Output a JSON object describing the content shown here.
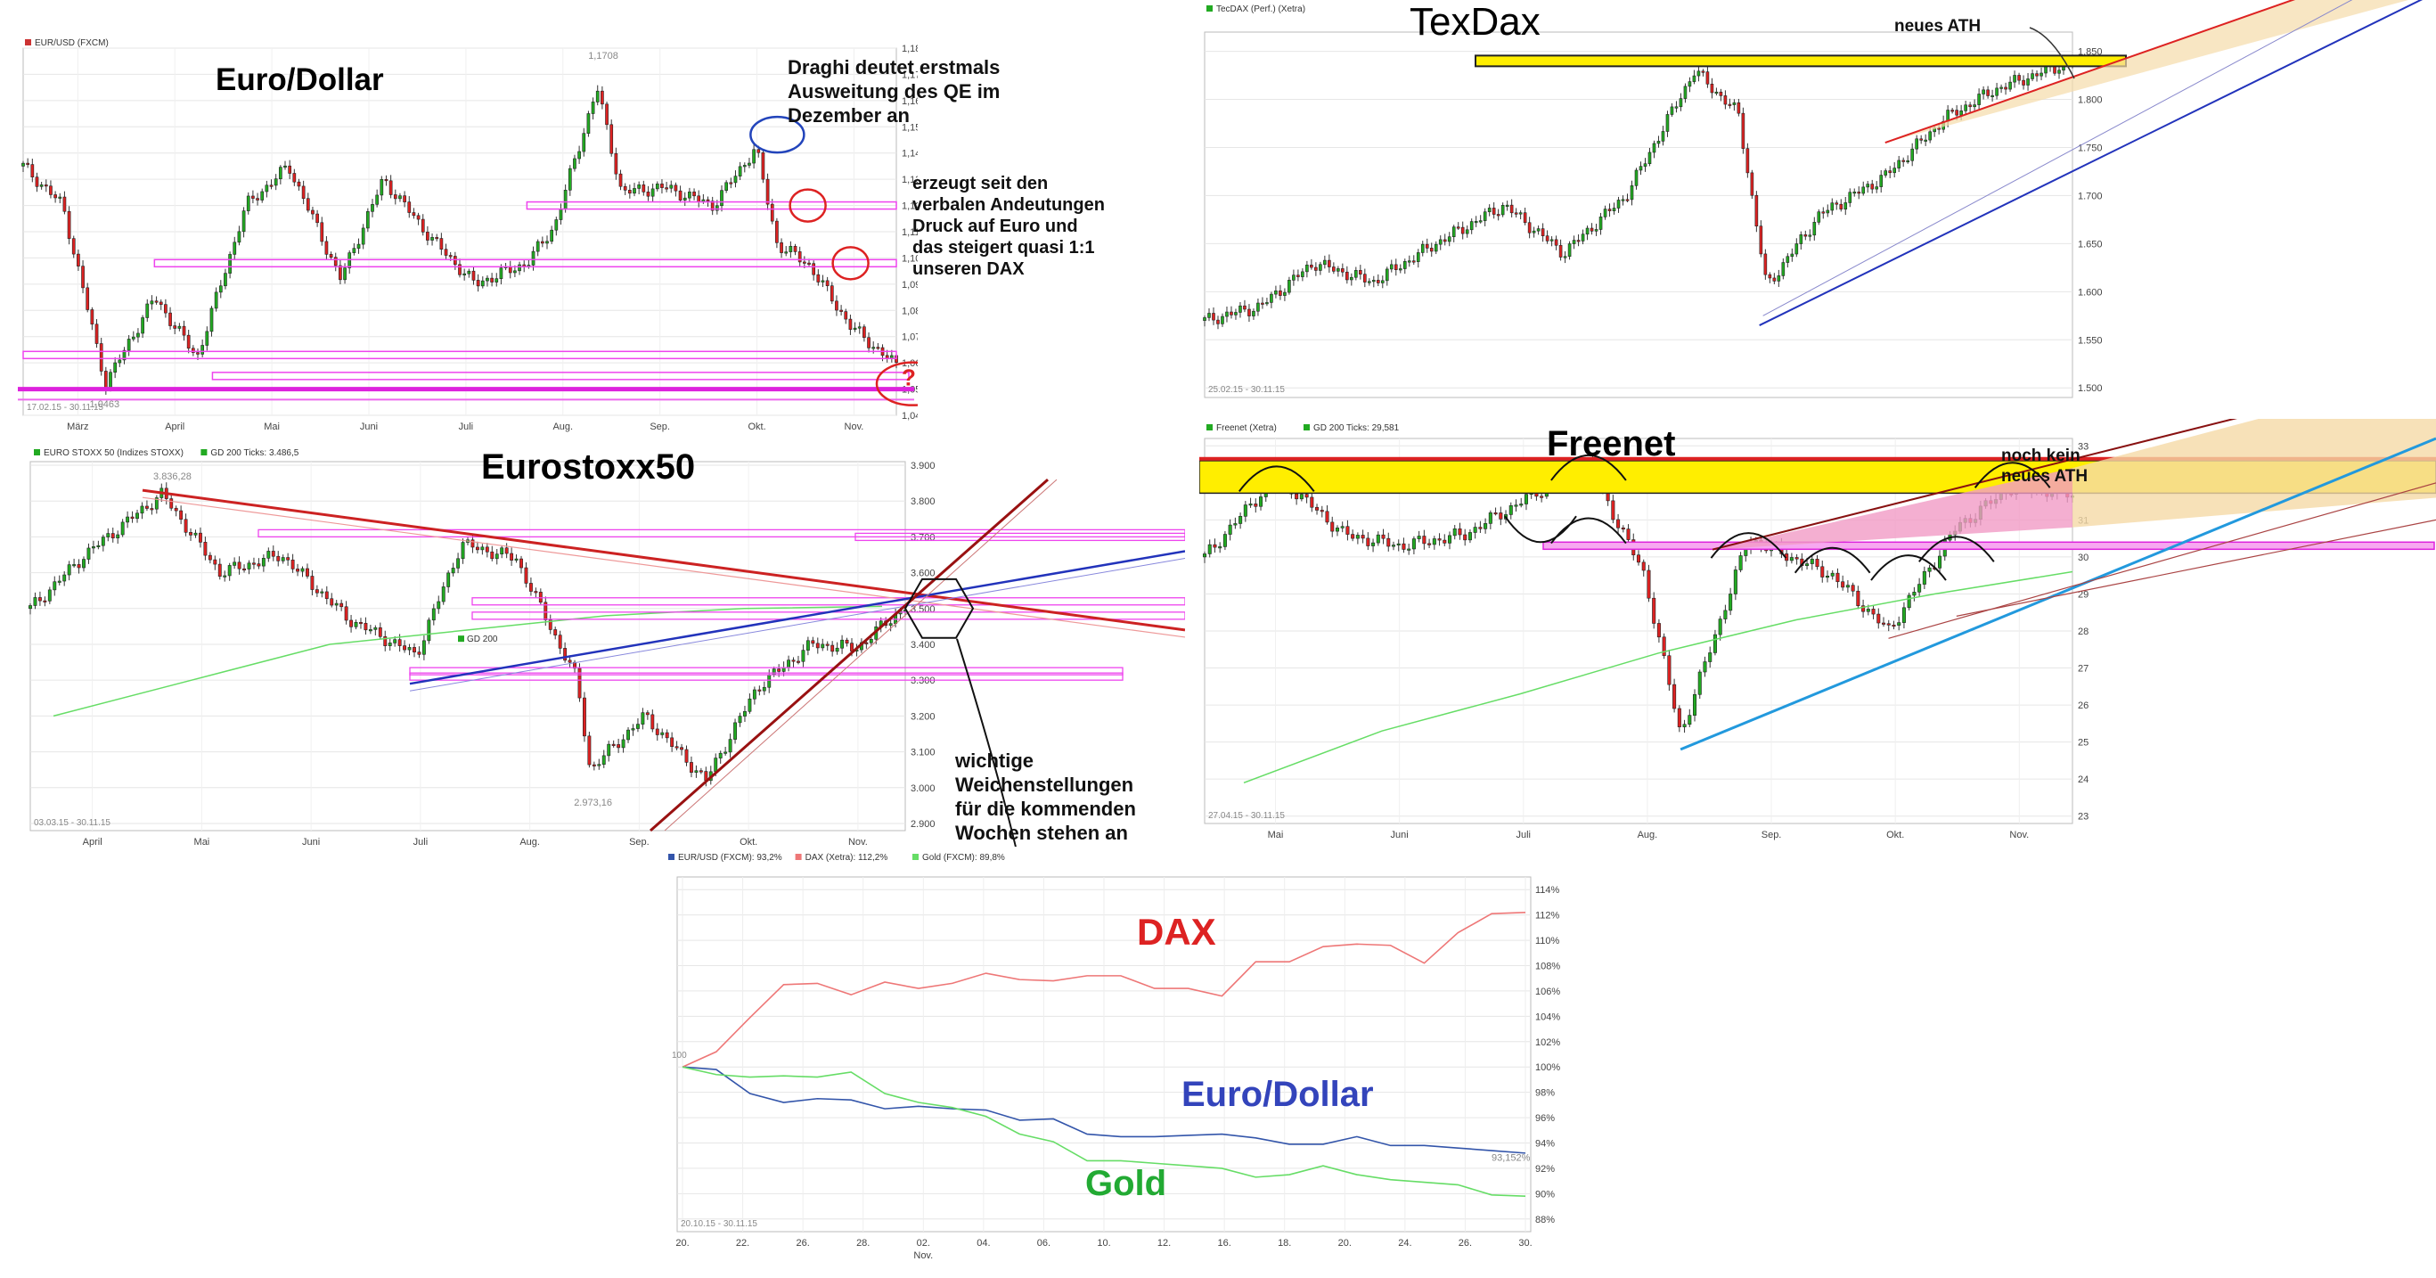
{
  "chart_data": [
    {
      "type": "candlestick",
      "id": "eurusd",
      "title": "Euro/Dollar",
      "legend": [
        {
          "label": "EUR/USD (FXCM)",
          "color": "#cc3333"
        }
      ],
      "date_range": "17.02.15 - 30.11.15",
      "x_ticks": [
        "März",
        "April",
        "Mai",
        "Juni",
        "Juli",
        "Aug.",
        "Sep.",
        "Okt.",
        "Nov."
      ],
      "y_ticks": [
        "1,04",
        "1,05",
        "1,06",
        "1,07",
        "1,08",
        "1,09",
        "1,10",
        "1,11",
        "1,12",
        "1,13",
        "1,14",
        "1,15",
        "1,16",
        "1,17",
        "1,18"
      ],
      "ylim": [
        1.04,
        1.18
      ],
      "high_label": "1,1708",
      "low_label": "1,0463",
      "x": [
        "17.02.15",
        "02.03.15",
        "16.03.15",
        "01.04.15",
        "15.04.15",
        "01.05.15",
        "15.05.15",
        "01.06.15",
        "15.06.15",
        "01.07.15",
        "15.07.15",
        "01.08.15",
        "10.08.15",
        "24.08.15",
        "01.09.15",
        "15.09.15",
        "01.10.15",
        "15.10.15",
        "22.10.15",
        "01.11.15",
        "15.11.15",
        "30.11.15"
      ],
      "y": [
        1.135,
        1.12,
        1.052,
        1.085,
        1.062,
        1.12,
        1.135,
        1.092,
        1.13,
        1.107,
        1.09,
        1.098,
        1.112,
        1.165,
        1.125,
        1.127,
        1.12,
        1.142,
        1.105,
        1.098,
        1.074,
        1.059
      ],
      "horizontal_levels": [
        1.12,
        1.098,
        1.063,
        1.055
      ],
      "marked_points": [
        [
          "22.10.15",
          1.147
        ],
        [
          "01.11.15",
          1.12
        ],
        [
          "15.11.15",
          1.098
        ],
        [
          "30.11.15",
          1.052
        ]
      ],
      "question_mark": "?",
      "annotations": [
        [
          "Draghi deutet erstmals",
          "Ausweitung des QE im",
          "Dezember an"
        ],
        [
          "erzeugt seit den",
          "verbalen Andeutungen",
          "Druck auf Euro und",
          "das steigert quasi 1:1",
          "unseren DAX"
        ]
      ]
    },
    {
      "type": "candlestick",
      "id": "tecdax",
      "title": "TexDax",
      "legend": [
        {
          "label": "TecDAX (Perf.) (Xetra)",
          "color": "#22aa22"
        }
      ],
      "date_range": "25.02.15 - 30.11.15",
      "y_ticks": [
        "1.500",
        "1.550",
        "1.600",
        "1.650",
        "1.700",
        "1.750",
        "1.800",
        "1.850"
      ],
      "ylim": [
        1490,
        1870
      ],
      "x": [
        "25.02.15",
        "15.03.15",
        "01.04.15",
        "20.04.15",
        "10.05.15",
        "01.06.15",
        "20.06.15",
        "10.07.15",
        "01.08.15",
        "15.08.15",
        "24.08.15",
        "10.09.15",
        "01.10.15",
        "20.10.15",
        "05.11.15",
        "30.11.15"
      ],
      "y": [
        1570,
        1585,
        1630,
        1610,
        1650,
        1690,
        1640,
        1700,
        1830,
        1785,
        1605,
        1680,
        1720,
        1780,
        1810,
        1840
      ],
      "resistance_level": 1840,
      "annotations": [
        "neues ATH"
      ]
    },
    {
      "type": "candlestick",
      "id": "eurostoxx",
      "title": "Eurostoxx50",
      "legend": [
        {
          "label": "EURO STOXX 50 (Indizes STOXX)",
          "color": "#22aa22"
        },
        {
          "label": "GD 200 Ticks: 3.486,5",
          "color": "#22aa22"
        }
      ],
      "inline_label": "GD 200",
      "date_range": "03.03.15 - 30.11.15",
      "x_ticks": [
        "April",
        "Mai",
        "Juni",
        "Juli",
        "Aug.",
        "Sep.",
        "Okt.",
        "Nov."
      ],
      "y_ticks": [
        "2.900",
        "3.000",
        "3.100",
        "3.200",
        "3.300",
        "3.400",
        "3.500",
        "3.600",
        "3.700",
        "3.800",
        "3.900"
      ],
      "ylim": [
        2880,
        3910
      ],
      "high_label": "3.836,28",
      "low_label": "2.973,16",
      "x": [
        "03.03.15",
        "20.03.15",
        "13.04.15",
        "01.05.15",
        "20.05.15",
        "10.06.15",
        "01.07.15",
        "15.07.15",
        "01.08.15",
        "20.08.15",
        "24.08.15",
        "10.09.15",
        "29.09.15",
        "15.10.15",
        "01.11.15",
        "15.11.15",
        "30.11.15"
      ],
      "y": [
        3500,
        3650,
        3820,
        3600,
        3650,
        3470,
        3370,
        3680,
        3640,
        3300,
        3050,
        3200,
        3020,
        3280,
        3400,
        3390,
        3506
      ],
      "gd200": [
        3200,
        3300,
        3400,
        3440,
        3480,
        3500,
        3506
      ],
      "annotations": [
        "wichtige",
        "Weichenstellungen",
        "für die kommenden",
        "Wochen stehen an"
      ]
    },
    {
      "type": "candlestick",
      "id": "freenet",
      "title": "Freenet",
      "legend": [
        {
          "label": "Freenet (Xetra)",
          "color": "#22aa22"
        },
        {
          "label": "GD 200 Ticks: 29,581",
          "color": "#22aa22"
        }
      ],
      "date_range": "27.04.15 - 30.11.15",
      "x_ticks": [
        "Mai",
        "Juni",
        "Juli",
        "Aug.",
        "Sep.",
        "Okt.",
        "Nov."
      ],
      "y_ticks": [
        "23",
        "24",
        "25",
        "26",
        "27",
        "28",
        "29",
        "30",
        "31",
        "32",
        "33"
      ],
      "ylim": [
        22.8,
        33.2
      ],
      "x": [
        "27.04.15",
        "15.05.15",
        "01.06.15",
        "15.06.15",
        "01.07.15",
        "20.07.15",
        "01.08.15",
        "15.08.15",
        "24.08.15",
        "10.09.15",
        "01.10.15",
        "15.10.15",
        "01.11.15",
        "15.11.15",
        "30.11.15"
      ],
      "y": [
        30.0,
        32.2,
        30.6,
        30.3,
        30.6,
        31.8,
        32.5,
        29.5,
        25.2,
        30.5,
        29.5,
        28.0,
        30.8,
        31.9,
        31.7
      ],
      "gd200": [
        23.9,
        25.3,
        26.3,
        27.4,
        28.3,
        29.0,
        29.6
      ],
      "band": [
        31.0,
        32.6
      ],
      "annotations": [
        "noch kein",
        "neues ATH"
      ]
    },
    {
      "type": "line",
      "id": "comparison",
      "date_range": "20.10.15 - 30.11.15",
      "x_ticks": [
        "20.",
        "22.",
        "26.",
        "28.",
        "02.",
        "04.",
        "06.",
        "10.",
        "12.",
        "16.",
        "18.",
        "20.",
        "24.",
        "26.",
        "30."
      ],
      "month_label": "Nov.",
      "y_ticks": [
        "88%",
        "90%",
        "92%",
        "94%",
        "96%",
        "98%",
        "100%",
        "102%",
        "104%",
        "106%",
        "108%",
        "110%",
        "112%",
        "114%"
      ],
      "ylim": [
        87,
        115
      ],
      "start_label": "100",
      "end_label": "93,152%",
      "series": [
        {
          "name": "EUR/USD (FXCM): 93,2%",
          "big_label": "Euro/Dollar",
          "color": "#3355aa",
          "label_color": "#3344bb",
          "values": [
            100.0,
            99.8,
            97.9,
            97.2,
            97.5,
            97.4,
            96.7,
            96.9,
            96.7,
            96.6,
            95.8,
            95.9,
            94.7,
            94.5,
            94.5,
            94.6,
            94.7,
            94.4,
            93.9,
            93.9,
            94.5,
            93.8,
            93.8,
            93.6,
            93.4,
            93.2
          ]
        },
        {
          "name": "DAX (Xetra): 112,2%",
          "big_label": "DAX",
          "color": "#ee7777",
          "label_color": "#dd2222",
          "values": [
            100,
            101.2,
            103.9,
            106.5,
            106.6,
            105.7,
            106.7,
            106.2,
            106.6,
            107.4,
            106.9,
            106.8,
            107.2,
            107.2,
            106.2,
            106.2,
            105.6,
            108.3,
            108.3,
            109.5,
            109.7,
            109.6,
            108.2,
            110.6,
            112.1,
            112.2
          ]
        },
        {
          "name": "Gold (FXCM): 89,8%",
          "big_label": "Gold",
          "color": "#66dd66",
          "label_color": "#22aa33",
          "values": [
            100,
            99.4,
            99.2,
            99.3,
            99.2,
            99.6,
            97.9,
            97.2,
            96.8,
            96.1,
            94.7,
            94.1,
            92.6,
            92.6,
            92.4,
            92.2,
            92.0,
            91.3,
            91.5,
            92.2,
            91.5,
            91.1,
            90.9,
            90.7,
            89.9,
            89.8
          ]
        }
      ]
    }
  ]
}
